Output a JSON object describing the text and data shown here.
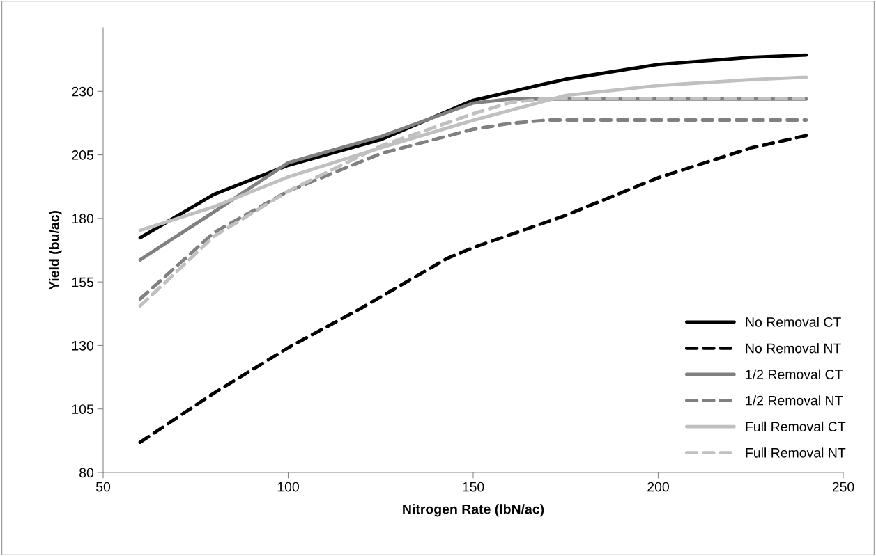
{
  "chart_data": {
    "type": "line",
    "xlabel": "Nitrogen Rate (lbN/ac)",
    "ylabel": "Yield (bu/ac)",
    "xlim": [
      50,
      250
    ],
    "xticks": [
      50,
      100,
      150,
      200,
      250
    ],
    "ylim": [
      80,
      255
    ],
    "yticks": [
      80,
      105,
      130,
      155,
      180,
      205,
      230
    ],
    "grid": false,
    "legend": "bottom right",
    "marker": "none",
    "series": [
      {
        "name": "No Removal CT",
        "color": "#000000",
        "line_style": "solid",
        "x": [
          60,
          80,
          100,
          125,
          150,
          175,
          200,
          225,
          240
        ],
        "values": [
          172.4,
          189.5,
          200.9,
          211,
          226.5,
          234.8,
          240.6,
          243.4,
          244.3
        ]
      },
      {
        "name": "No Removal NT",
        "color": "#000000",
        "line_style": "dashed",
        "x": [
          60,
          80,
          100,
          120,
          143,
          150,
          175,
          200,
          225,
          240
        ],
        "values": [
          91.9,
          111.3,
          129.1,
          144.9,
          164.3,
          168.5,
          181.2,
          196,
          207.7,
          212.6
        ]
      },
      {
        "name": "1/2 Removal CT",
        "color": "#808080",
        "line_style": "solid",
        "x": [
          60,
          80,
          100,
          125,
          150,
          160,
          200,
          240
        ],
        "values": [
          163.7,
          182.6,
          201.9,
          212.2,
          225.4,
          227,
          227,
          227
        ]
      },
      {
        "name": "1/2 Removal NT",
        "color": "#808080",
        "line_style": "dashed",
        "x": [
          60,
          80,
          100,
          125,
          150,
          160,
          170,
          200,
          240
        ],
        "values": [
          148.3,
          174.5,
          190.7,
          205.5,
          215.1,
          217.4,
          218.7,
          218.7,
          218.7
        ]
      },
      {
        "name": "Full Removal CT",
        "color": "#c0c0c0",
        "line_style": "solid",
        "x": [
          60,
          80,
          100,
          125,
          150,
          175,
          200,
          225,
          240
        ],
        "values": [
          175.3,
          184.6,
          196.3,
          207.8,
          218.6,
          228.4,
          232.3,
          234.6,
          235.6
        ]
      },
      {
        "name": "Full Removal NT",
        "color": "#c0c0c0",
        "line_style": "dashed",
        "x": [
          60,
          80,
          100,
          125,
          150,
          160,
          170,
          200,
          240
        ],
        "values": [
          145.5,
          173,
          190.7,
          208.5,
          221.2,
          225.6,
          227.2,
          227.2,
          227.2
        ]
      }
    ]
  }
}
